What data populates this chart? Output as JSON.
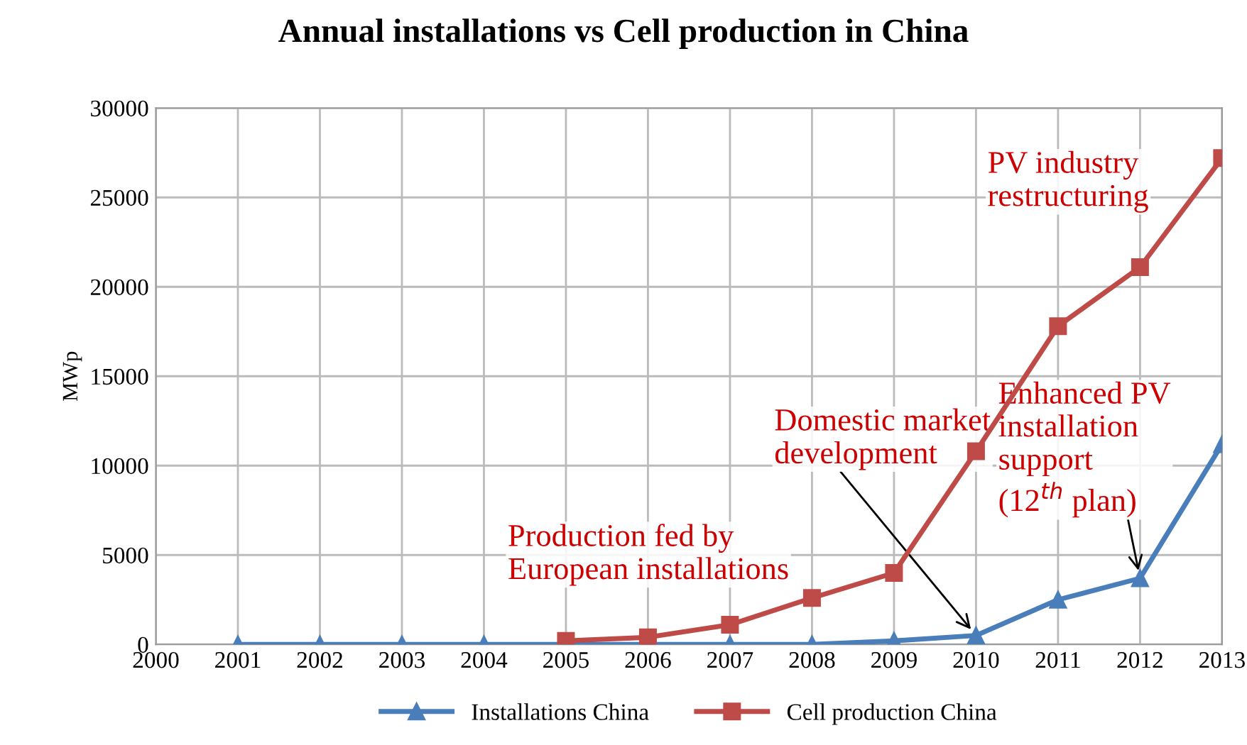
{
  "chart_data": {
    "type": "line",
    "title": "Annual installations vs Cell production in China",
    "ylabel": "MWp",
    "x": [
      2001,
      2002,
      2003,
      2004,
      2005,
      2006,
      2007,
      2008,
      2009,
      2010,
      2011,
      2012,
      2013
    ],
    "xlim": [
      2000,
      2013
    ],
    "xticks": [
      2000,
      2001,
      2002,
      2003,
      2004,
      2005,
      2006,
      2007,
      2008,
      2009,
      2010,
      2011,
      2012,
      2013
    ],
    "ylim": [
      0,
      30000
    ],
    "yticks": [
      0,
      5000,
      10000,
      15000,
      20000,
      25000,
      30000
    ],
    "grid": true,
    "legend": "bottom",
    "series": [
      {
        "name": "Installations China",
        "color": "#4a7ebb",
        "marker": "triangle",
        "values": [
          0,
          0,
          0,
          0,
          0,
          0,
          0,
          0,
          200,
          500,
          2500,
          3700,
          11200
        ]
      },
      {
        "name": "Cell production China",
        "color": "#be4b48",
        "marker": "square",
        "x": [
          2005,
          2006,
          2007,
          2008,
          2009,
          2010,
          2011,
          2012,
          2013
        ],
        "values": [
          200,
          400,
          1100,
          2600,
          4000,
          10800,
          17800,
          21100,
          27200
        ]
      }
    ],
    "annotations": [
      "PV industry\nrestructuring",
      {
        "text": "Domestic market\ndevelopment",
        "x": 2010,
        "y": 500
      },
      {
        "text": "Enhanced PV\ninstallation\nsupport\n(12$^{th}$ plan)",
        "x": 2012,
        "y": 3700
      },
      "Production fed by\nEuropean installations"
    ]
  }
}
